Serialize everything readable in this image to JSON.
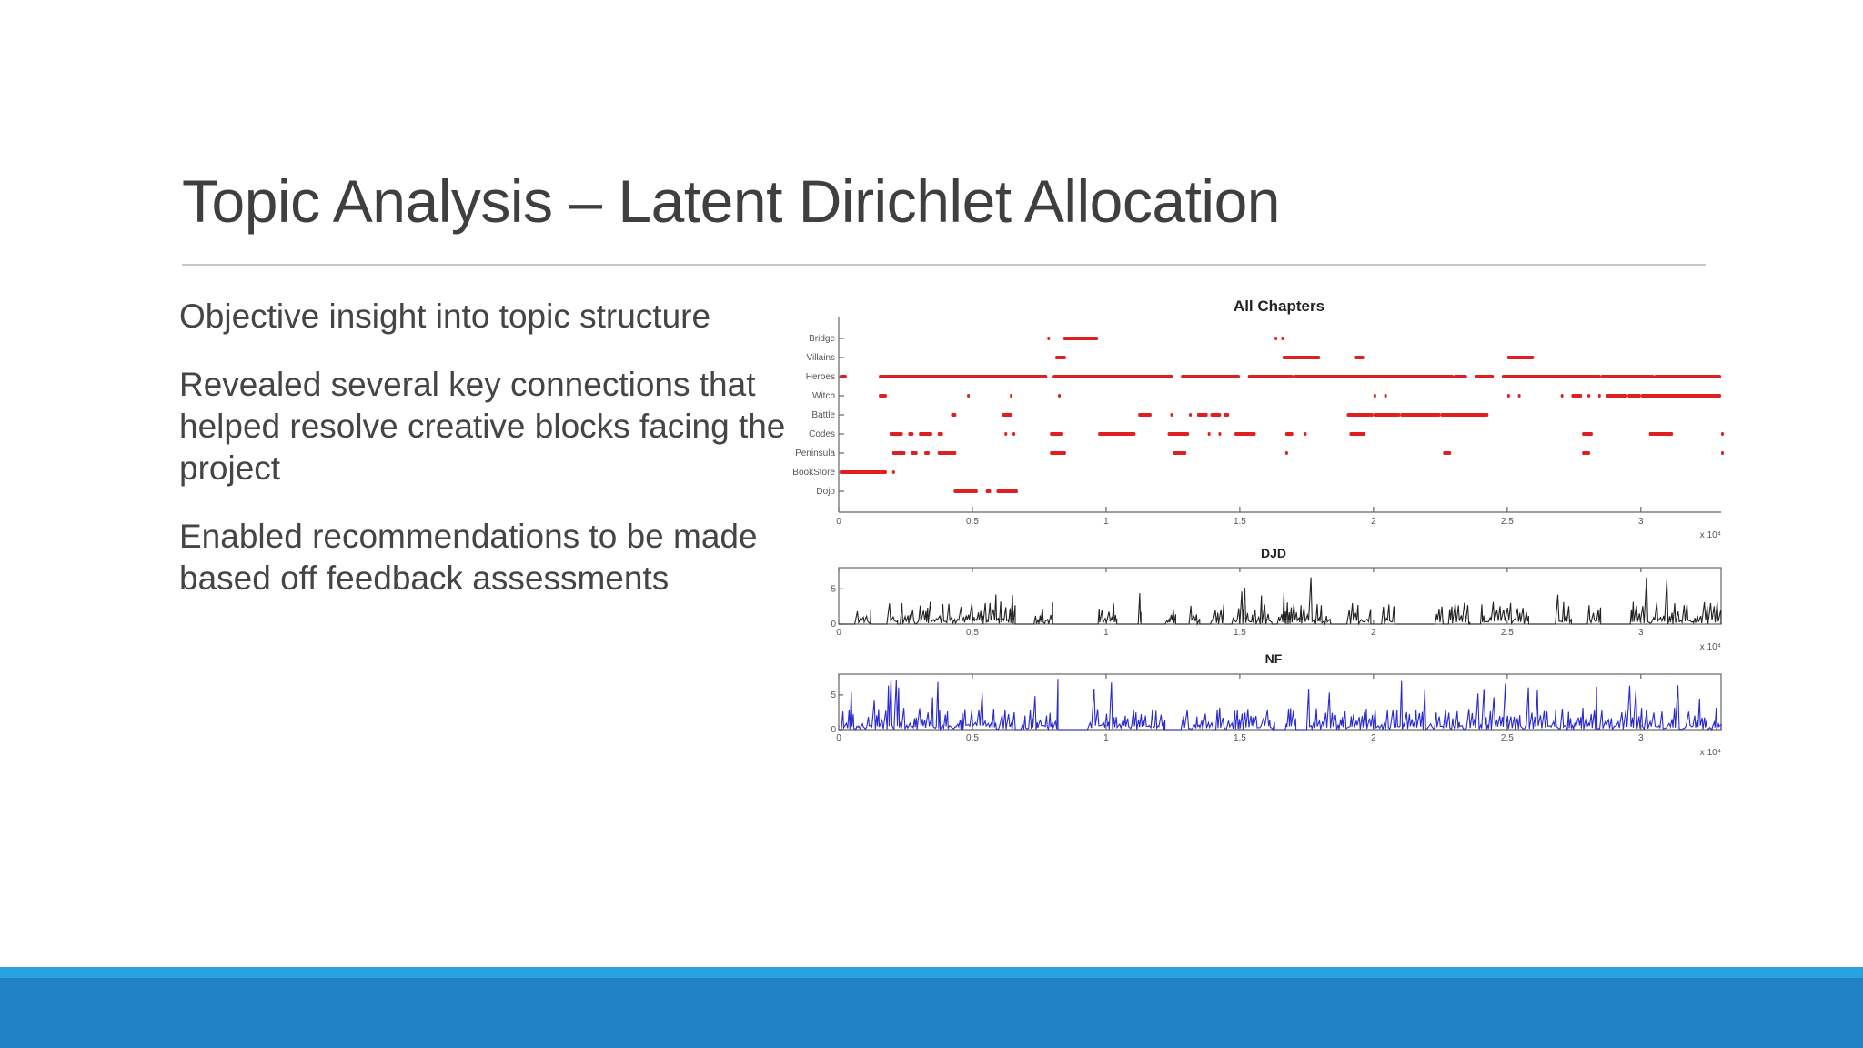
{
  "slide": {
    "title": "Topic Analysis – Latent Dirichlet Allocation",
    "bullets": [
      "Objective insight into topic structure",
      "Revealed several key connections that helped resolve creative blocks facing the project",
      "Enabled recommendations to be made based off feedback assessments"
    ]
  },
  "colors": {
    "topic_marker": "#e02020",
    "djd_series": "#222222",
    "nf_series": "#2a2ad0",
    "accent_stripe": "#29a3e0",
    "accent_band": "#2280c4"
  },
  "chart_data": [
    {
      "type": "scatter",
      "title": "All Chapters",
      "categories": [
        "Bridge",
        "Villains",
        "Heroes",
        "Witch",
        "Battle",
        "Codes",
        "Peninsula",
        "BookStore",
        "Dojo"
      ],
      "xlim": [
        0,
        33000
      ],
      "x_ticks": [
        0,
        5000,
        10000,
        15000,
        20000,
        25000,
        30000
      ],
      "x_tick_labels": [
        "0",
        "0.5",
        "1",
        "1.5",
        "2",
        "2.5",
        "3"
      ],
      "x_multiplier": "x 10⁴",
      "segments": [
        {
          "topic": "Bridge",
          "ranges": [
            [
              7800,
              7850
            ],
            [
              8400,
              9700
            ],
            [
              16300,
              16350
            ],
            [
              16550,
              16600
            ]
          ]
        },
        {
          "topic": "Villains",
          "ranges": [
            [
              8100,
              8500
            ],
            [
              16600,
              18000
            ],
            [
              19300,
              19650
            ],
            [
              25000,
              26000
            ]
          ]
        },
        {
          "topic": "Heroes",
          "ranges": [
            [
              0,
              300
            ],
            [
              1500,
              7800
            ],
            [
              8000,
              12500
            ],
            [
              12800,
              15000
            ],
            [
              15300,
              17000
            ],
            [
              17000,
              23000
            ],
            [
              23000,
              23500
            ],
            [
              23800,
              24500
            ],
            [
              24800,
              28500
            ],
            [
              28500,
              30500
            ],
            [
              30500,
              33000
            ]
          ]
        },
        {
          "topic": "Witch",
          "ranges": [
            [
              1500,
              1800
            ],
            [
              4800,
              4850
            ],
            [
              6400,
              6450
            ],
            [
              8200,
              8300
            ],
            [
              20000,
              20050
            ],
            [
              20400,
              20450
            ],
            [
              25000,
              25050
            ],
            [
              25400,
              25450
            ],
            [
              27000,
              27050
            ],
            [
              27400,
              27800
            ],
            [
              28000,
              28050
            ],
            [
              28400,
              28450
            ],
            [
              28700,
              29500
            ],
            [
              29500,
              30000
            ],
            [
              30000,
              33000
            ]
          ]
        },
        {
          "topic": "Battle",
          "ranges": [
            [
              4200,
              4400
            ],
            [
              6100,
              6500
            ],
            [
              11200,
              11700
            ],
            [
              12400,
              12450
            ],
            [
              13100,
              13150
            ],
            [
              13400,
              13800
            ],
            [
              13900,
              14300
            ],
            [
              14400,
              14600
            ],
            [
              19000,
              20000
            ],
            [
              20000,
              21000
            ],
            [
              21000,
              22500
            ],
            [
              22500,
              24300
            ]
          ]
        },
        {
          "topic": "Codes",
          "ranges": [
            [
              1900,
              2400
            ],
            [
              2600,
              2800
            ],
            [
              3000,
              3500
            ],
            [
              3700,
              3900
            ],
            [
              6200,
              6300
            ],
            [
              6500,
              6550
            ],
            [
              7900,
              8400
            ],
            [
              9700,
              11100
            ],
            [
              12300,
              13100
            ],
            [
              13800,
              13850
            ],
            [
              14200,
              14250
            ],
            [
              14800,
              15600
            ],
            [
              16700,
              17000
            ],
            [
              17400,
              17500
            ],
            [
              19100,
              19700
            ],
            [
              27800,
              28200
            ],
            [
              30300,
              31200
            ],
            [
              33000,
              33100
            ]
          ]
        },
        {
          "topic": "Peninsula",
          "ranges": [
            [
              2000,
              2500
            ],
            [
              2700,
              2950
            ],
            [
              3200,
              3400
            ],
            [
              3700,
              4400
            ],
            [
              7900,
              8500
            ],
            [
              12500,
              13000
            ],
            [
              16700,
              16800
            ],
            [
              22600,
              22900
            ],
            [
              27800,
              28100
            ],
            [
              33000,
              33100
            ]
          ]
        },
        {
          "topic": "BookStore",
          "ranges": [
            [
              0,
              1800
            ],
            [
              2000,
              2050
            ]
          ]
        },
        {
          "topic": "Dojo",
          "ranges": [
            [
              4300,
              5200
            ],
            [
              5500,
              5700
            ],
            [
              5900,
              6700
            ]
          ]
        }
      ]
    },
    {
      "type": "line",
      "title": "DJD",
      "xlim": [
        0,
        33000
      ],
      "ylim": [
        0,
        8
      ],
      "y_ticks": [
        0,
        5
      ],
      "x_tick_labels": [
        "0",
        "0.5",
        "1",
        "1.5",
        "2",
        "2.5",
        "3"
      ],
      "x_multiplier": "x 10⁴",
      "bursts": [
        [
          600,
          1200
        ],
        [
          1800,
          2200
        ],
        [
          2300,
          5400
        ],
        [
          5400,
          6600
        ],
        [
          7300,
          8000
        ],
        [
          9700,
          10400
        ],
        [
          11200,
          11300
        ],
        [
          12200,
          12600
        ],
        [
          13100,
          13500
        ],
        [
          13900,
          14400
        ],
        [
          14700,
          16200
        ],
        [
          16400,
          18400
        ],
        [
          19000,
          19900
        ],
        [
          20300,
          20800
        ],
        [
          22300,
          22600
        ],
        [
          22800,
          23600
        ],
        [
          24000,
          25800
        ],
        [
          26800,
          27400
        ],
        [
          28000,
          28500
        ],
        [
          29600,
          33000
        ]
      ]
    },
    {
      "type": "line",
      "title": "NF",
      "xlim": [
        0,
        33000
      ],
      "ylim": [
        0,
        8
      ],
      "y_ticks": [
        0,
        5
      ],
      "x_tick_labels": [
        "0",
        "0.5",
        "1",
        "1.5",
        "2",
        "2.5",
        "3"
      ],
      "x_multiplier": "x 10⁴",
      "bursts": [
        [
          100,
          6600
        ],
        [
          6800,
          8200
        ],
        [
          9300,
          12200
        ],
        [
          12800,
          14000
        ],
        [
          14100,
          16300
        ],
        [
          16700,
          17100
        ],
        [
          17500,
          33000
        ]
      ]
    }
  ]
}
